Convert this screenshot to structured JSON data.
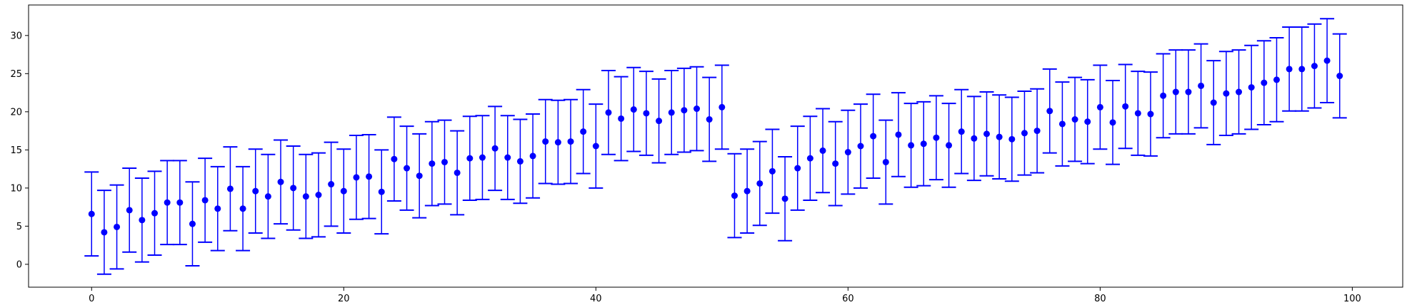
{
  "chart_data": {
    "type": "scatter",
    "style": "errorbar",
    "title": "",
    "xlabel": "",
    "ylabel": "",
    "xlim": [
      -5,
      104
    ],
    "ylim": [
      -3,
      34
    ],
    "x_ticks": [
      0,
      20,
      40,
      60,
      80,
      100
    ],
    "y_ticks": [
      0,
      5,
      10,
      15,
      20,
      25,
      30
    ],
    "grid": false,
    "legend": "none",
    "colors": {
      "series": "#0000ff",
      "axis": "#000000"
    },
    "series": [
      {
        "x": [
          0,
          1,
          2,
          3,
          4,
          5,
          6,
          7,
          8,
          9,
          10,
          11,
          12,
          13,
          14,
          15,
          16,
          17,
          18,
          19,
          20,
          21,
          22,
          23,
          24,
          25,
          26,
          27,
          28,
          29,
          30,
          31,
          32,
          33,
          34,
          35,
          36,
          37,
          38,
          39,
          40,
          41,
          42,
          43,
          44,
          45,
          46,
          47,
          48,
          49,
          50,
          51,
          52,
          53,
          54,
          55,
          56,
          57,
          58,
          59,
          60,
          61,
          62,
          63,
          64,
          65,
          66,
          67,
          68,
          69,
          70,
          71,
          72,
          73,
          74,
          75,
          76,
          77,
          78,
          79,
          80,
          81,
          82,
          83,
          84,
          85,
          86,
          87,
          88,
          89,
          90,
          91,
          92,
          93,
          94,
          95,
          96,
          97,
          98,
          99
        ],
        "y": [
          6.6,
          4.2,
          4.9,
          7.1,
          5.8,
          6.7,
          8.1,
          8.1,
          5.3,
          8.4,
          7.3,
          9.9,
          7.3,
          9.6,
          8.9,
          10.8,
          10.0,
          8.9,
          9.1,
          10.5,
          9.6,
          11.4,
          11.5,
          9.5,
          13.8,
          12.6,
          11.6,
          13.2,
          13.4,
          12.0,
          13.9,
          14.0,
          15.2,
          14.0,
          13.5,
          14.2,
          16.1,
          16.0,
          16.1,
          17.4,
          15.5,
          19.9,
          19.1,
          20.3,
          19.8,
          18.8,
          19.9,
          20.2,
          20.4,
          19.0,
          20.6,
          9.0,
          9.6,
          10.6,
          12.2,
          8.6,
          12.6,
          13.9,
          14.9,
          13.2,
          14.7,
          15.5,
          16.8,
          13.4,
          17.0,
          15.6,
          15.8,
          16.6,
          15.6,
          17.4,
          16.5,
          17.1,
          16.7,
          16.4,
          17.2,
          17.5,
          20.1,
          18.4,
          19.0,
          18.7,
          20.6,
          18.6,
          20.7,
          19.8,
          19.7,
          22.1,
          22.6,
          22.6,
          23.4,
          21.2,
          22.4,
          22.6,
          23.2,
          23.8,
          24.2,
          25.6,
          25.6,
          26.0,
          26.7,
          24.7
        ],
        "yerr": [
          5.5,
          5.5,
          5.5,
          5.5,
          5.5,
          5.5,
          5.5,
          5.5,
          5.5,
          5.5,
          5.5,
          5.5,
          5.5,
          5.5,
          5.5,
          5.5,
          5.5,
          5.5,
          5.5,
          5.5,
          5.5,
          5.5,
          5.5,
          5.5,
          5.5,
          5.5,
          5.5,
          5.5,
          5.5,
          5.5,
          5.5,
          5.5,
          5.5,
          5.5,
          5.5,
          5.5,
          5.5,
          5.5,
          5.5,
          5.5,
          5.5,
          5.5,
          5.5,
          5.5,
          5.5,
          5.5,
          5.5,
          5.5,
          5.5,
          5.5,
          5.5,
          5.5,
          5.5,
          5.5,
          5.5,
          5.5,
          5.5,
          5.5,
          5.5,
          5.5,
          5.5,
          5.5,
          5.5,
          5.5,
          5.5,
          5.5,
          5.5,
          5.5,
          5.5,
          5.5,
          5.5,
          5.5,
          5.5,
          5.5,
          5.5,
          5.5,
          5.5,
          5.5,
          5.5,
          5.5,
          5.5,
          5.5,
          5.5,
          5.5,
          5.5,
          5.5,
          5.5,
          5.5,
          5.5,
          5.5,
          5.5,
          5.5,
          5.5,
          5.5,
          5.5,
          5.5,
          5.5,
          5.5,
          5.5,
          5.5
        ]
      }
    ]
  }
}
